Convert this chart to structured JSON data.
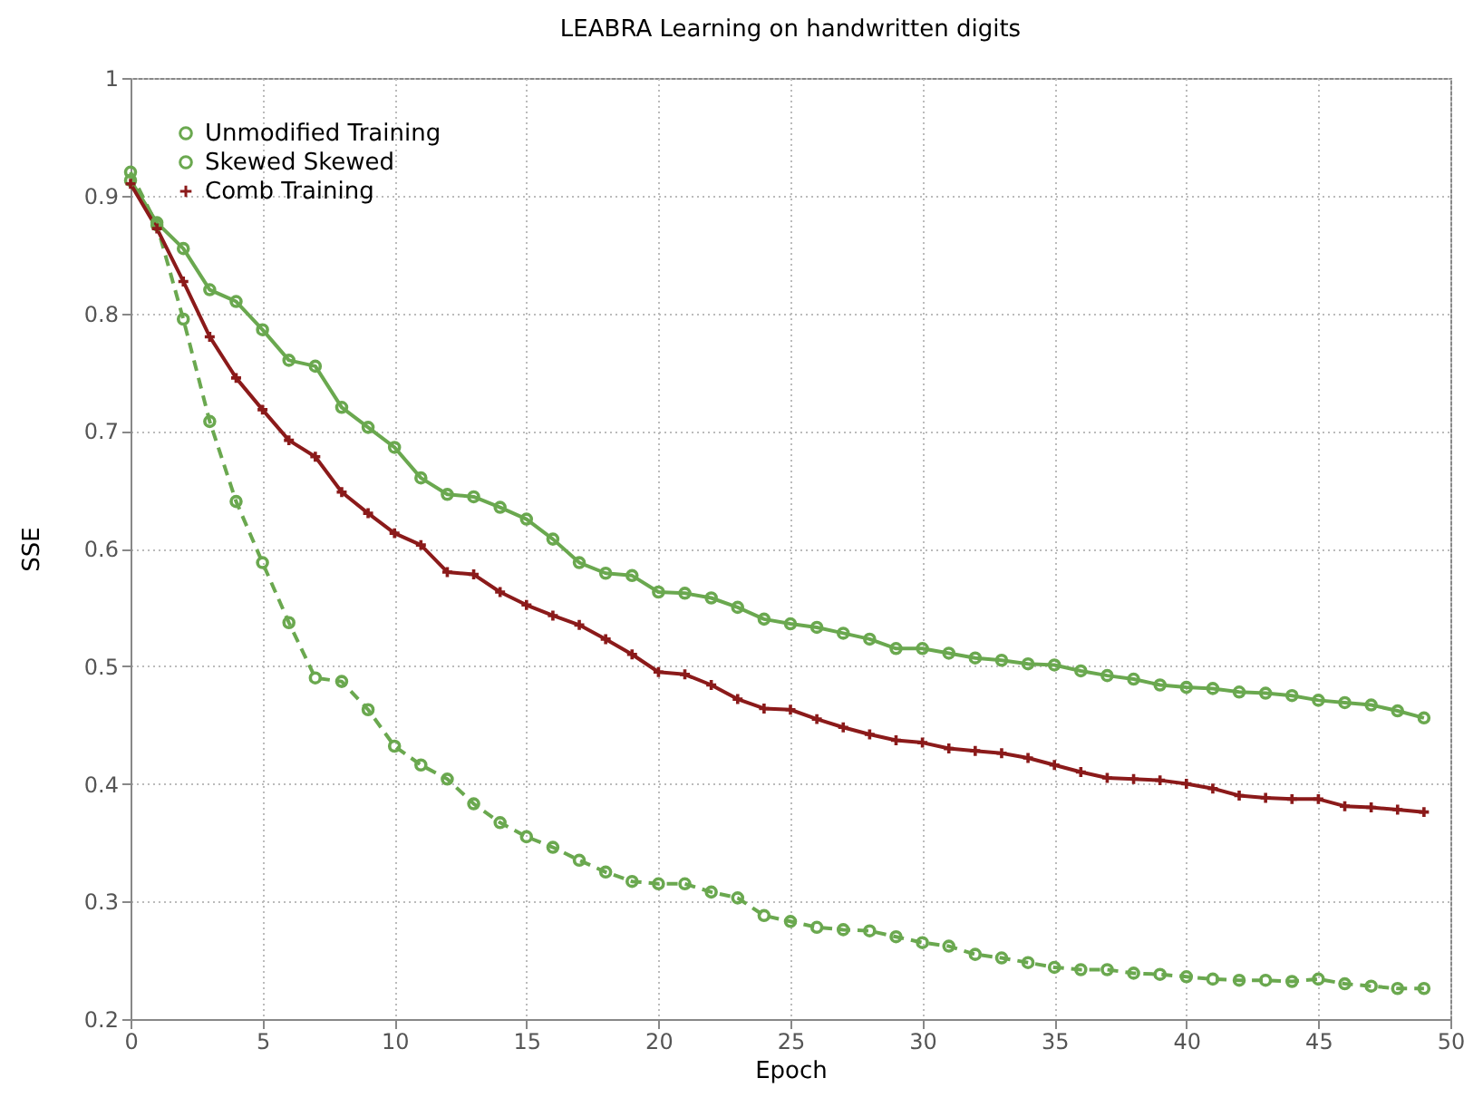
{
  "chart_data": {
    "type": "line",
    "title": "LEABRA Learning on handwritten digits",
    "xlabel": "Epoch",
    "ylabel": "SSE",
    "x": [
      0,
      1,
      2,
      3,
      4,
      5,
      6,
      7,
      8,
      9,
      10,
      11,
      12,
      13,
      14,
      15,
      16,
      17,
      18,
      19,
      20,
      21,
      22,
      23,
      24,
      25,
      26,
      27,
      28,
      29,
      30,
      31,
      32,
      33,
      34,
      35,
      36,
      37,
      38,
      39,
      40,
      41,
      42,
      43,
      44,
      45,
      46,
      47,
      48,
      49
    ],
    "xlim": [
      0,
      50
    ],
    "xticks": [
      0,
      5,
      10,
      15,
      20,
      25,
      30,
      35,
      40,
      45,
      50
    ],
    "ylim": [
      0.2,
      1
    ],
    "yticks": [
      0.2,
      0.3,
      0.4,
      0.5,
      0.6,
      0.7,
      0.8,
      0.9,
      1
    ],
    "grid": true,
    "legend": "top left",
    "series": [
      {
        "name": "Unmodified Training",
        "color": "#6aa84f",
        "marker": "circle",
        "line_style": "dashed",
        "values": [
          0.92,
          0.875,
          0.795,
          0.708,
          0.64,
          0.588,
          0.537,
          0.49,
          0.487,
          0.463,
          0.432,
          0.416,
          0.404,
          0.383,
          0.367,
          0.355,
          0.346,
          0.335,
          0.325,
          0.317,
          0.315,
          0.315,
          0.308,
          0.303,
          0.288,
          0.283,
          0.278,
          0.276,
          0.275,
          0.27,
          0.265,
          0.262,
          0.255,
          0.252,
          0.248,
          0.244,
          0.242,
          0.242,
          0.239,
          0.238,
          0.236,
          0.234,
          0.233,
          0.233,
          0.232,
          0.234,
          0.23,
          0.228,
          0.226,
          0.226
        ]
      },
      {
        "name": "Skewed Skewed",
        "color": "#6aa84f",
        "marker": "circle",
        "line_style": "solid",
        "values": [
          0.913,
          0.877,
          0.855,
          0.82,
          0.81,
          0.786,
          0.76,
          0.755,
          0.72,
          0.703,
          0.686,
          0.66,
          0.646,
          0.644,
          0.635,
          0.625,
          0.608,
          0.588,
          0.579,
          0.577,
          0.563,
          0.562,
          0.558,
          0.55,
          0.54,
          0.536,
          0.533,
          0.528,
          0.523,
          0.515,
          0.515,
          0.511,
          0.507,
          0.505,
          0.502,
          0.501,
          0.496,
          0.492,
          0.489,
          0.484,
          0.482,
          0.481,
          0.478,
          0.477,
          0.475,
          0.471,
          0.469,
          0.467,
          0.462,
          0.456
        ]
      },
      {
        "name": "Comb Training",
        "color": "#8b1a1a",
        "marker": "cross",
        "line_style": "solid",
        "values": [
          0.91,
          0.872,
          0.827,
          0.78,
          0.745,
          0.718,
          0.692,
          0.678,
          0.648,
          0.63,
          0.613,
          0.603,
          0.58,
          0.578,
          0.563,
          0.552,
          0.543,
          0.535,
          0.523,
          0.51,
          0.495,
          0.493,
          0.484,
          0.472,
          0.464,
          0.463,
          0.455,
          0.448,
          0.442,
          0.437,
          0.435,
          0.43,
          0.428,
          0.426,
          0.422,
          0.416,
          0.41,
          0.405,
          0.404,
          0.403,
          0.4,
          0.396,
          0.39,
          0.388,
          0.387,
          0.387,
          0.381,
          0.38,
          0.378,
          0.376
        ]
      }
    ]
  }
}
